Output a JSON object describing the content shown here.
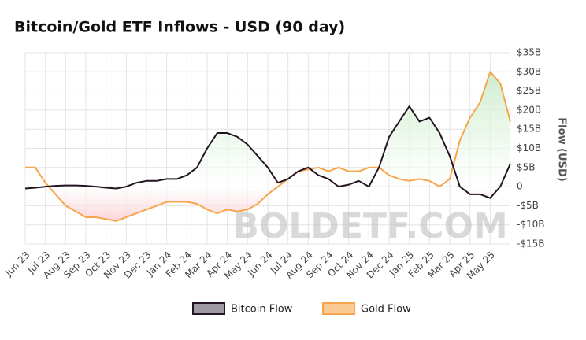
{
  "chart_data": {
    "type": "line",
    "title": "Bitcoin/Gold ETF Inflows - USD (90 day)",
    "y_axis_label": "Flow (USD)",
    "watermark": "BOLDETF.COM",
    "categories": [
      "Jun 23",
      null,
      "Jul 23",
      null,
      "Aug 23",
      null,
      "Sep 23",
      null,
      "Oct 23",
      null,
      "Nov 23",
      null,
      "Dec 23",
      null,
      "Jan 24",
      null,
      "Feb 24",
      null,
      "Mar 24",
      null,
      "Apr 24",
      null,
      "May 24",
      null,
      "Jun 24",
      null,
      "Jul 24",
      null,
      "Aug 24",
      null,
      "Sep 24",
      null,
      "Oct 24",
      null,
      "Nov 24",
      null,
      "Dec 24",
      null,
      "Jan 25",
      null,
      "Feb 25",
      null,
      "Mar 25",
      null,
      "Apr 25",
      null,
      "May 25",
      null,
      null
    ],
    "series": [
      {
        "name": "Bitcoin Flow",
        "color": "#231421",
        "legend_fill": "#9e9aa3",
        "values": [
          -0.5,
          -0.3,
          0,
          0.2,
          0.3,
          0.3,
          0.2,
          0,
          -0.3,
          -0.5,
          0,
          1,
          1.5,
          1.5,
          2,
          2,
          3,
          5,
          10,
          14,
          14,
          13,
          11,
          8,
          5,
          1,
          2,
          4,
          5,
          3,
          2,
          0,
          0.5,
          1.5,
          0,
          5,
          13,
          17,
          21,
          17,
          18,
          14,
          8,
          0,
          -2,
          -2,
          -3,
          0,
          6
        ]
      },
      {
        "name": "Gold Flow",
        "color": "#f7a54a",
        "legend_fill": "#fccb94",
        "values": [
          5,
          5,
          1,
          -2,
          -5,
          -6.5,
          -8,
          -8,
          -8.5,
          -9,
          -8,
          -7,
          -6,
          -5,
          -4,
          -4,
          -4,
          -4.5,
          -6,
          -7,
          -6,
          -6.5,
          -6,
          -4.5,
          -2,
          0,
          2,
          4,
          4.5,
          5,
          4,
          5,
          4,
          4,
          5,
          5,
          3,
          2,
          1.5,
          2,
          1.5,
          0,
          2,
          12,
          18,
          22,
          30,
          27,
          17
        ]
      }
    ],
    "ylim": [
      -15,
      35
    ],
    "yticks": [
      {
        "value": -15,
        "label": "-$15B"
      },
      {
        "value": -10,
        "label": "-$10B"
      },
      {
        "value": -5,
        "label": "-$5B"
      },
      0,
      {
        "value": 5,
        "label": "$5B"
      },
      {
        "value": 10,
        "label": "$10B"
      },
      {
        "value": 15,
        "label": "$15B"
      },
      {
        "value": 20,
        "label": "$20B"
      },
      {
        "value": 25,
        "label": "$25B"
      },
      {
        "value": 30,
        "label": "$30B"
      },
      {
        "value": 35,
        "label": "$35B"
      }
    ],
    "grid": true
  }
}
